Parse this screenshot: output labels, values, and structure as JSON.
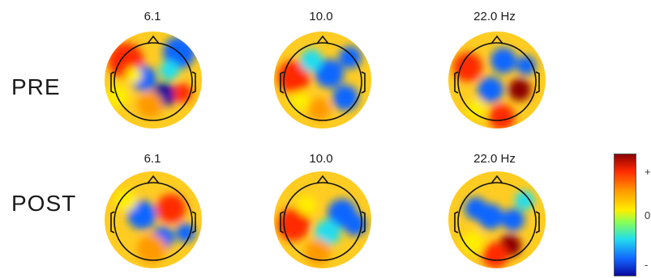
{
  "rows": [
    {
      "label": "PRE",
      "frequencies": [
        "6.1",
        "10.0",
        "22.0 Hz"
      ]
    },
    {
      "label": "POST",
      "frequencies": [
        "6.1",
        "10.0",
        "22.0 Hz"
      ]
    }
  ],
  "colorbar": {
    "tick_labels": [
      "+",
      "0",
      "-"
    ],
    "colors": [
      "#8b0000",
      "#ff2a00",
      "#ff9900",
      "#ffee00",
      "#88ff55",
      "#22ddee",
      "#1166ff",
      "#0a0aa0"
    ]
  }
}
